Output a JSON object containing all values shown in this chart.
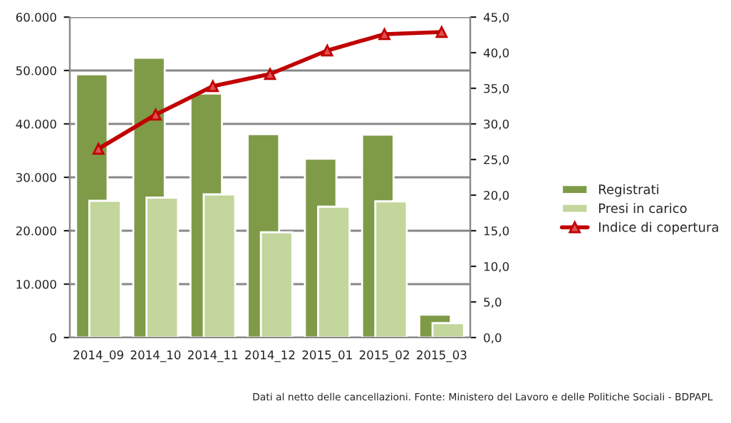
{
  "chart_data": {
    "type": "bar",
    "categories": [
      "2014_09",
      "2014_10",
      "2014_11",
      "2014_12",
      "2015_01",
      "2015_02",
      "2015_03"
    ],
    "series": [
      {
        "name": "Registrati",
        "color": "#7f9b48",
        "values": [
          49300,
          52400,
          45700,
          38100,
          33500,
          38000,
          4300
        ]
      },
      {
        "name": "Presi in carico",
        "color": "#c3d69b",
        "values": [
          25600,
          26200,
          26800,
          19700,
          24500,
          25500,
          2700
        ]
      },
      {
        "name": "Indice di copertura",
        "type": "line",
        "axis": "y2",
        "color": "#c00000",
        "marker": "triangle",
        "values": [
          26.5,
          31.3,
          35.3,
          37.0,
          40.3,
          42.6,
          42.9
        ]
      }
    ],
    "ylim": [
      0,
      60000
    ],
    "yticks": [
      {
        "value": 0,
        "label": "0"
      },
      {
        "value": 10000,
        "label": "10.000"
      },
      {
        "value": 20000,
        "label": "20.000"
      },
      {
        "value": 30000,
        "label": "30.000"
      },
      {
        "value": 40000,
        "label": "40.000"
      },
      {
        "value": 50000,
        "label": "50.000"
      },
      {
        "value": 60000,
        "label": "60.000"
      }
    ],
    "y2lim": [
      0,
      45
    ],
    "y2ticks": [
      {
        "value": 0,
        "label": "0,0"
      },
      {
        "value": 5,
        "label": "5,0"
      },
      {
        "value": 10,
        "label": "10,0"
      },
      {
        "value": 15,
        "label": "15,0"
      },
      {
        "value": 20,
        "label": "20,0"
      },
      {
        "value": 25,
        "label": "25,0"
      },
      {
        "value": 30,
        "label": "30,0"
      },
      {
        "value": 35,
        "label": "35,0"
      },
      {
        "value": 40,
        "label": "40,0"
      },
      {
        "value": 45,
        "label": "45,0"
      }
    ],
    "grid": "y",
    "legend": "right",
    "annotations": [
      "Dati al netto delle cancellazioni. Fonte: Ministero del Lavoro e delle Politiche Sociali - BDPAPL"
    ]
  }
}
